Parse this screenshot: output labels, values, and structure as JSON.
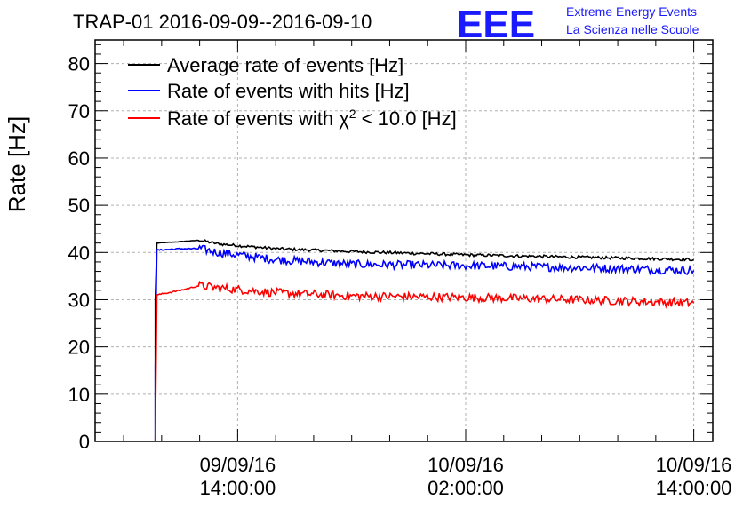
{
  "header": {
    "title": "TRAP-01 2016-09-09--2016-09-10",
    "logo_letters": "EEE",
    "logo_line1": "Extreme Energy Events",
    "logo_line2": "La Scienza nelle Scuole"
  },
  "chart_data": {
    "type": "line",
    "ylabel": "Rate [Hz]",
    "xlabel": "",
    "ylim": [
      0,
      85
    ],
    "yticks": [
      0,
      10,
      20,
      30,
      40,
      50,
      60,
      70,
      80
    ],
    "xlim": [
      "2016-09-09 06:30",
      "2016-09-10 15:00"
    ],
    "xticks": [
      {
        "at": "2016-09-09 14:00",
        "date": "09/09/16",
        "time": "14:00:00"
      },
      {
        "at": "2016-09-10 02:00",
        "date": "10/09/16",
        "time": "02:00:00"
      },
      {
        "at": "2016-09-10 14:00",
        "date": "10/09/16",
        "time": "14:00:00"
      }
    ],
    "grid": true,
    "legend_position": "top-left",
    "series": [
      {
        "name": "Average rate of events [Hz]",
        "color": "#000000",
        "noise": 0.3,
        "x": [
          "2016-09-09 09:40",
          "2016-09-09 09:45",
          "2016-09-09 11:00",
          "2016-09-09 12:00",
          "2016-09-09 13:00",
          "2016-09-09 16:00",
          "2016-09-09 20:00",
          "2016-09-10 02:00",
          "2016-09-10 08:00",
          "2016-09-10 14:00"
        ],
        "y": [
          30,
          42,
          42.3,
          42.6,
          41.8,
          40.8,
          40.2,
          39.5,
          39.0,
          38.5
        ]
      },
      {
        "name": "Rate of events with hits [Hz]",
        "color": "#0000ff",
        "noise": 0.9,
        "x": [
          "2016-09-09 09:40",
          "2016-09-09 09:45",
          "2016-09-09 11:00",
          "2016-09-09 12:00",
          "2016-09-09 13:00",
          "2016-09-09 16:00",
          "2016-09-09 20:00",
          "2016-09-10 02:00",
          "2016-09-10 08:00",
          "2016-09-10 14:00"
        ],
        "y": [
          16,
          40.5,
          40.8,
          40.8,
          40.0,
          38.5,
          37.5,
          37.2,
          36.8,
          36.2
        ]
      },
      {
        "name": "Rate of events with χ² < 10.0 [Hz]",
        "legend_main": "Rate of events with χ",
        "legend_sup": "2",
        "legend_rest": " < 10.0 [Hz]",
        "color": "#ff0000",
        "noise": 0.9,
        "x": [
          "2016-09-09 09:40",
          "2016-09-09 09:45",
          "2016-09-09 11:00",
          "2016-09-09 12:00",
          "2016-09-09 13:00",
          "2016-09-09 16:00",
          "2016-09-09 20:00",
          "2016-09-10 02:00",
          "2016-09-10 08:00",
          "2016-09-10 14:00"
        ],
        "y": [
          0,
          31,
          32,
          33,
          32.5,
          31.5,
          30.8,
          30.5,
          30.0,
          29.3
        ]
      }
    ]
  }
}
